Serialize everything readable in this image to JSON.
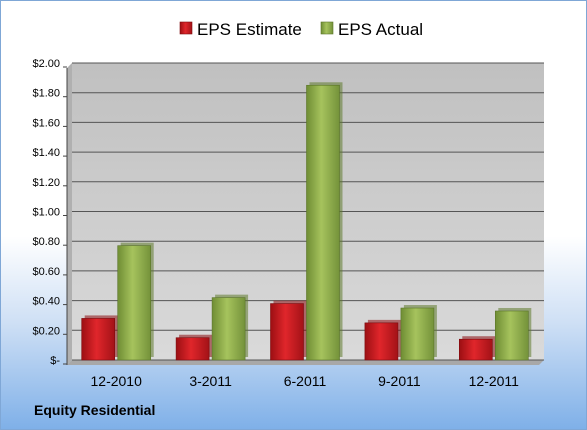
{
  "chart_data": {
    "type": "bar",
    "categories": [
      "12-2010",
      "3-2011",
      "6-2011",
      "9-2011",
      "12-2011"
    ],
    "series": [
      {
        "name": "EPS Estimate",
        "values": [
          0.28,
          0.15,
          0.38,
          0.25,
          0.14
        ],
        "color": "#c0161b"
      },
      {
        "name": "EPS Actual",
        "values": [
          0.77,
          0.42,
          1.85,
          0.35,
          0.33
        ],
        "color": "#8fb04a"
      }
    ],
    "ylim": [
      0,
      2.0
    ],
    "yticks": [
      0,
      0.2,
      0.4,
      0.6,
      0.8,
      1.0,
      1.2,
      1.4,
      1.6,
      1.8,
      2.0
    ],
    "ytick_labels": [
      "$-",
      "$0.20",
      "$0.40",
      "$0.60",
      "$0.80",
      "$1.00",
      "$1.20",
      "$1.40",
      "$1.60",
      "$1.80",
      "$2.00"
    ],
    "legend_position": "top",
    "grid": true
  },
  "company": "Equity Residential"
}
